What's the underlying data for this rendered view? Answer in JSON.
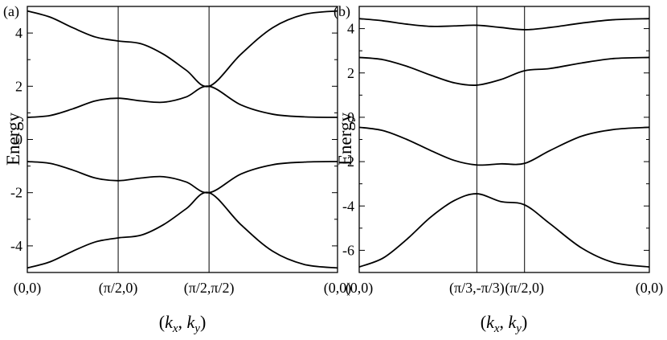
{
  "chart_data": [
    {
      "type": "line",
      "panel_label": "(a)",
      "ylabel": "Energy",
      "xlabel": "(k_x, k_y)",
      "xlabel_main": "(k",
      "xlabel_sub1": "x",
      "xlabel_mid": ", k",
      "xlabel_sub2": "y",
      "xlabel_end": ")",
      "ylim": [
        -5,
        5
      ],
      "yticks": [
        "4",
        "2",
        "0",
        "-2",
        "-4"
      ],
      "ytick_values": [
        4,
        2,
        0,
        -2,
        -4
      ],
      "xticks": [
        "(0,0)",
        "(π/2,0)",
        "(π/2,π/2)",
        "(0,0)"
      ],
      "xtick_positions": [
        0,
        1,
        2,
        3.414
      ],
      "xlim": [
        0,
        3.414
      ],
      "vlines": [
        1,
        2
      ],
      "grid": false,
      "x": [
        0,
        0.25,
        0.5,
        0.75,
        1.0,
        1.25,
        1.5,
        1.75,
        2.0,
        2.35,
        2.7,
        3.05,
        3.414
      ],
      "series": [
        {
          "values": [
            4.83,
            4.6,
            4.2,
            3.85,
            3.7,
            3.6,
            3.2,
            2.6,
            2.0,
            3.2,
            4.2,
            4.7,
            4.83
          ]
        },
        {
          "values": [
            0.83,
            0.9,
            1.15,
            1.45,
            1.55,
            1.45,
            1.4,
            1.6,
            2.0,
            1.3,
            0.95,
            0.85,
            0.83
          ]
        },
        {
          "values": [
            -0.83,
            -0.9,
            -1.15,
            -1.45,
            -1.55,
            -1.45,
            -1.4,
            -1.6,
            -2.0,
            -1.3,
            -0.95,
            -0.85,
            -0.83
          ]
        },
        {
          "values": [
            -4.83,
            -4.6,
            -4.2,
            -3.85,
            -3.7,
            -3.6,
            -3.2,
            -2.6,
            -2.0,
            -3.2,
            -4.2,
            -4.7,
            -4.83
          ]
        }
      ]
    },
    {
      "type": "line",
      "panel_label": "(b)",
      "ylabel": "Energy",
      "xlabel": "(k_x, k_y)",
      "xlabel_main": "(k",
      "xlabel_sub1": "x",
      "xlabel_mid": ", k",
      "xlabel_sub2": "y",
      "xlabel_end": ")",
      "ylim": [
        -7,
        5
      ],
      "yticks": [
        "4",
        "2",
        "0",
        "-2",
        "-4",
        "-6"
      ],
      "ytick_values": [
        4,
        2,
        0,
        -2,
        -4,
        -6
      ],
      "xticks": [
        "(0,0)",
        "(π/3,-π/3)",
        "(π/2,0)",
        "(0,0)"
      ],
      "xtick_positions": [
        0,
        1.48,
        2.08,
        3.65
      ],
      "xlim": [
        0,
        3.65
      ],
      "vlines": [
        1.48,
        2.08
      ],
      "grid": false,
      "x": [
        0,
        0.3,
        0.6,
        0.9,
        1.2,
        1.48,
        1.78,
        2.08,
        2.4,
        2.8,
        3.2,
        3.65
      ],
      "series": [
        {
          "values": [
            4.45,
            4.35,
            4.2,
            4.1,
            4.12,
            4.15,
            4.05,
            3.95,
            4.05,
            4.25,
            4.4,
            4.45
          ]
        },
        {
          "values": [
            2.7,
            2.6,
            2.3,
            1.9,
            1.55,
            1.45,
            1.7,
            2.1,
            2.2,
            2.45,
            2.65,
            2.7
          ]
        },
        {
          "values": [
            -0.45,
            -0.6,
            -1.0,
            -1.5,
            -1.95,
            -2.15,
            -2.1,
            -2.08,
            -1.5,
            -0.85,
            -0.55,
            -0.45
          ]
        },
        {
          "values": [
            -6.75,
            -6.35,
            -5.5,
            -4.5,
            -3.75,
            -3.45,
            -3.8,
            -3.95,
            -4.8,
            -5.9,
            -6.55,
            -6.75
          ]
        }
      ]
    }
  ]
}
